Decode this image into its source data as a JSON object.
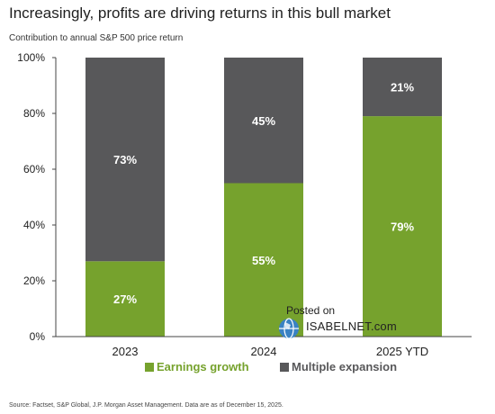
{
  "header": {
    "title": "Increasingly, profits are driving returns in this bull market",
    "subtitle": "Contribution to annual S&P 500 price return"
  },
  "footer": {
    "source": "Source: Factset, S&P Global, J.P. Morgan Asset Management. Data are as of December 15, 2025."
  },
  "watermark": {
    "posted": "Posted on",
    "site": "ISABELNET.com"
  },
  "chart_data": {
    "type": "bar",
    "stacked": true,
    "categories": [
      "2023",
      "2024",
      "2025 YTD"
    ],
    "series": [
      {
        "name": "Earnings growth",
        "values": [
          27,
          55,
          79
        ],
        "labels": [
          "27%",
          "55%",
          "79%"
        ],
        "color": "#76a22d"
      },
      {
        "name": "Multiple expansion",
        "values": [
          73,
          45,
          21
        ],
        "labels": [
          "73%",
          "45%",
          "21%"
        ],
        "color": "#58585a"
      }
    ],
    "ylim": [
      0,
      100
    ],
    "yticks": [
      0,
      20,
      40,
      60,
      80,
      100
    ],
    "ytick_labels": [
      "0%",
      "20%",
      "40%",
      "60%",
      "80%",
      "100%"
    ],
    "grid": false,
    "legend": "bottom-center"
  }
}
